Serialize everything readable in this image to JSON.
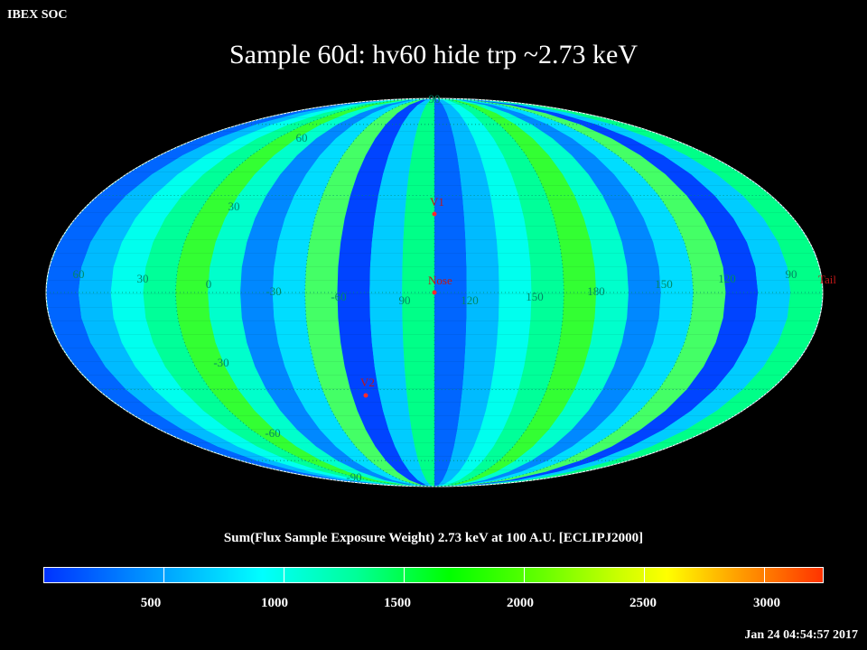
{
  "header": {
    "org": "IBEX SOC",
    "title": "Sample 60d: hv60 hide trp ~2.73 keV"
  },
  "map": {
    "projection": "Mollweide",
    "lat_labels": [
      "60",
      "30",
      "-30",
      "-60"
    ],
    "pole_labels": [
      "90",
      "-90"
    ],
    "lon_labels": [
      "60",
      "30",
      "0",
      "-30",
      "-60",
      "90",
      "120",
      "150",
      "180",
      "150",
      "120",
      "90"
    ],
    "markers": [
      {
        "label": "V1",
        "color": "#ff2a2a"
      },
      {
        "label": "Nose",
        "color": "#ff2a2a"
      },
      {
        "label": "V2",
        "color": "#ff2a2a"
      },
      {
        "label": "Tail",
        "color": "#ff2a2a"
      }
    ],
    "grid_color": "#008866"
  },
  "colorbar": {
    "title": "Sum(Flux Sample Exposure Weight)  2.73 keV at 100 A.U. [ECLIPJ2000]",
    "min": 0,
    "max": 3250,
    "ticks": [
      "500",
      "1000",
      "1500",
      "2000",
      "2500",
      "3000"
    ],
    "colors": [
      "#0033ff",
      "#0099ff",
      "#00ffff",
      "#00ff99",
      "#00ff00",
      "#66ff00",
      "#ccff00",
      "#ffff00",
      "#ffaa00",
      "#ff3300"
    ]
  },
  "footer": {
    "timestamp": "Jan 24 04:54:57 2017"
  }
}
